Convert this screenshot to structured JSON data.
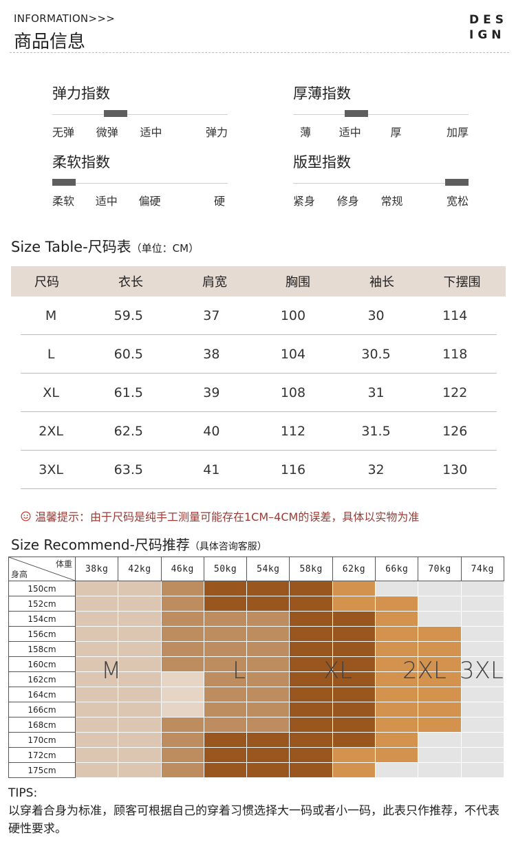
{
  "header": {
    "en": "INFORMATION>>>",
    "cn": "商品信息",
    "logo_line1": "DES",
    "logo_line2": "IGN"
  },
  "indices": [
    {
      "title": "弹力指数",
      "labels": [
        "无弹",
        "微弹",
        "适中",
        "弹力"
      ],
      "selected": 1
    },
    {
      "title": "厚薄指数",
      "labels": [
        "薄",
        "适中",
        "厚",
        "加厚"
      ],
      "selected": 1
    },
    {
      "title": "柔软指数",
      "labels": [
        "柔软",
        "适中",
        "偏硬",
        "硬"
      ],
      "selected": 0
    },
    {
      "title": "版型指数",
      "labels": [
        "紧身",
        "修身",
        "常规",
        "宽松"
      ],
      "selected": 3
    }
  ],
  "size_table": {
    "title": "Size Table-尺码表",
    "unit": "（单位：CM）",
    "headers": [
      "尺码",
      "衣长",
      "肩宽",
      "胸围",
      "袖长",
      "下摆围"
    ],
    "rows": [
      [
        "M",
        "59.5",
        "37",
        "100",
        "30",
        "114"
      ],
      [
        "L",
        "60.5",
        "38",
        "104",
        "30.5",
        "118"
      ],
      [
        "XL",
        "61.5",
        "39",
        "108",
        "31",
        "122"
      ],
      [
        "2XL",
        "62.5",
        "40",
        "112",
        "31.5",
        "126"
      ],
      [
        "3XL",
        "63.5",
        "41",
        "116",
        "32",
        "130"
      ]
    ]
  },
  "tip": "温馨提示：由于尺码是纯手工测量可能存在1CM–4CM的误差，具体以实物为准",
  "recommend": {
    "title": "Size Recommend-尺码推荐",
    "note": "（具体咨询客服）",
    "corner_weight": "体重",
    "corner_height": "身高",
    "weights": [
      "38kg",
      "42kg",
      "46kg",
      "50kg",
      "54kg",
      "58kg",
      "62kg",
      "66kg",
      "70kg",
      "74kg"
    ],
    "heights": [
      "150cm",
      "152cm",
      "154cm",
      "156cm",
      "158cm",
      "160cm",
      "162cm",
      "164cm",
      "166cm",
      "168cm",
      "170cm",
      "172cm",
      "175cm"
    ],
    "zone_labels": [
      "M",
      "L",
      "XL",
      "2XL",
      "3XL"
    ],
    "colors": {
      "M": "#dcc6b2",
      "Mlight": "#e6d4c4",
      "L": "#bd8c5f",
      "XL": "#9a561f",
      "2XL": "#d4924f",
      "3XL": "#e4e4e4"
    },
    "grid": [
      [
        "M",
        "M",
        "L",
        "XL",
        "XL",
        "XL",
        "2XL",
        "3XL",
        "3XL",
        "3XL"
      ],
      [
        "M",
        "M",
        "L",
        "XL",
        "XL",
        "XL",
        "2XL",
        "2XL",
        "3XL",
        "3XL"
      ],
      [
        "M",
        "M",
        "L",
        "L",
        "L",
        "XL",
        "XL",
        "2XL",
        "3XL",
        "3XL"
      ],
      [
        "M",
        "M",
        "L",
        "L",
        "L",
        "XL",
        "XL",
        "2XL",
        "2XL",
        "3XL"
      ],
      [
        "M",
        "M",
        "L",
        "L",
        "L",
        "XL",
        "XL",
        "2XL",
        "2XL",
        "3XL"
      ],
      [
        "M",
        "M",
        "L",
        "L",
        "L",
        "XL",
        "XL",
        "2XL",
        "2XL",
        "3XL"
      ],
      [
        "M",
        "M",
        "Mlight",
        "L",
        "L",
        "XL",
        "XL",
        "2XL",
        "2XL",
        "3XL"
      ],
      [
        "M",
        "M",
        "Mlight",
        "L",
        "L",
        "XL",
        "XL",
        "2XL",
        "2XL",
        "3XL"
      ],
      [
        "M",
        "M",
        "Mlight",
        "L",
        "L",
        "XL",
        "XL",
        "2XL",
        "2XL",
        "3XL"
      ],
      [
        "M",
        "M",
        "L",
        "L",
        "L",
        "XL",
        "XL",
        "2XL",
        "2XL",
        "3XL"
      ],
      [
        "M",
        "M",
        "L",
        "XL",
        "XL",
        "XL",
        "XL",
        "2XL",
        "3XL",
        "3XL"
      ],
      [
        "M",
        "M",
        "L",
        "XL",
        "XL",
        "XL",
        "2XL",
        "2XL",
        "3XL",
        "3XL"
      ],
      [
        "M",
        "M",
        "L",
        "XL",
        "XL",
        "XL",
        "2XL",
        "3XL",
        "3XL",
        "3XL"
      ]
    ]
  },
  "tips": {
    "head": "TIPS:",
    "body": "以穿着合身为标准，顾客可根据自己的穿着习惯选择大一码或者小一码，此表只作推荐，不代表硬性要求。"
  }
}
